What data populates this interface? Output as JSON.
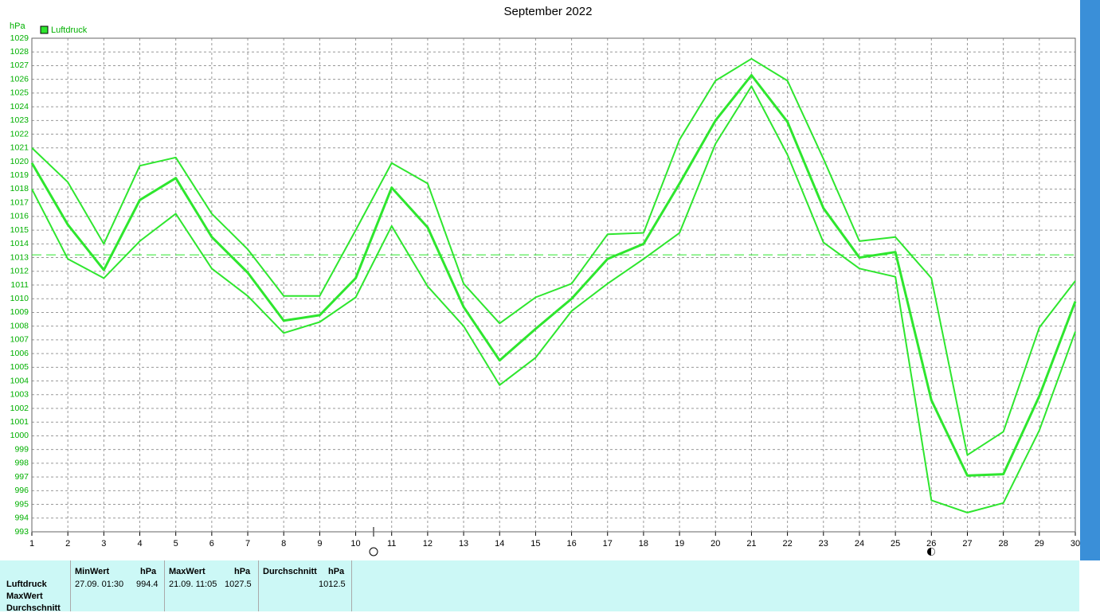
{
  "chart_data": {
    "type": "line",
    "title": "September 2022",
    "y_label": "hPa",
    "x": [
      1,
      2,
      3,
      4,
      5,
      6,
      7,
      8,
      9,
      10,
      11,
      12,
      13,
      14,
      15,
      16,
      17,
      18,
      19,
      20,
      21,
      22,
      23,
      24,
      25,
      26,
      27,
      28,
      29,
      30
    ],
    "xlim": [
      1,
      30
    ],
    "xticks": [
      1,
      2,
      3,
      4,
      5,
      6,
      7,
      8,
      9,
      10,
      11,
      12,
      13,
      14,
      15,
      16,
      17,
      18,
      19,
      20,
      21,
      22,
      23,
      24,
      25,
      26,
      27,
      28,
      29,
      30
    ],
    "ylim": [
      993,
      1029
    ],
    "yticks": [
      993,
      994,
      995,
      996,
      997,
      998,
      999,
      1000,
      1001,
      1002,
      1003,
      1004,
      1005,
      1006,
      1007,
      1008,
      1009,
      1010,
      1011,
      1012,
      1013,
      1014,
      1015,
      1016,
      1017,
      1018,
      1019,
      1020,
      1021,
      1022,
      1023,
      1024,
      1025,
      1026,
      1027,
      1028,
      1029
    ],
    "grid": true,
    "series": [
      {
        "name": "Luftdruck",
        "color": "#2ee62e",
        "line_width": 3,
        "values": [
          1019.9,
          1015.4,
          1012.1,
          1017.2,
          1018.8,
          1014.5,
          1011.9,
          1008.4,
          1008.8,
          1011.5,
          1018.1,
          1015.2,
          1009.4,
          1005.5,
          1007.8,
          1010.0,
          1012.9,
          1014.0,
          1018.4,
          1023.0,
          1026.3,
          1022.9,
          1016.6,
          1013.0,
          1013.4,
          1002.6,
          997.1,
          997.2,
          1002.9,
          1009.8
        ]
      },
      {
        "color": "#2ee62e",
        "line_width": 2,
        "values": [
          1021.0,
          1018.5,
          1014.0,
          1019.7,
          1020.3,
          1016.2,
          1013.6,
          1010.2,
          1010.2,
          1015.0,
          1019.9,
          1018.4,
          1011.1,
          1008.2,
          1010.1,
          1011.1,
          1014.7,
          1014.8,
          1021.6,
          1025.9,
          1027.5,
          1025.9,
          1020.2,
          1014.2,
          1014.5,
          1011.5,
          998.6,
          1000.3,
          1007.9,
          1011.3
        ]
      },
      {
        "color": "#2ee62e",
        "line_width": 2,
        "values": [
          1018.0,
          1012.9,
          1011.5,
          1014.2,
          1016.2,
          1012.2,
          1010.2,
          1007.5,
          1008.3,
          1010.1,
          1015.3,
          1010.9,
          1008.0,
          1003.7,
          1005.7,
          1009.1,
          1011.1,
          1012.9,
          1014.8,
          1021.3,
          1025.5,
          1020.5,
          1014.1,
          1012.2,
          1011.6,
          995.3,
          994.4,
          995.1,
          1000.4,
          1007.6
        ]
      }
    ],
    "reference_line": 1013.2
  },
  "table": {
    "row_labels": [
      "Luftdruck",
      "MaxWert",
      "Durchschnitt"
    ],
    "columns": [
      {
        "label": "MinWert",
        "unit": "hPa"
      },
      {
        "label": "MaxWert",
        "unit": "hPa"
      },
      {
        "label": "Durchschnitt",
        "unit": "hPa"
      }
    ],
    "rows": [
      [
        "27.09. 01:30",
        994.4,
        "21.09. 11:05",
        1027.5,
        1012.5
      ]
    ]
  }
}
